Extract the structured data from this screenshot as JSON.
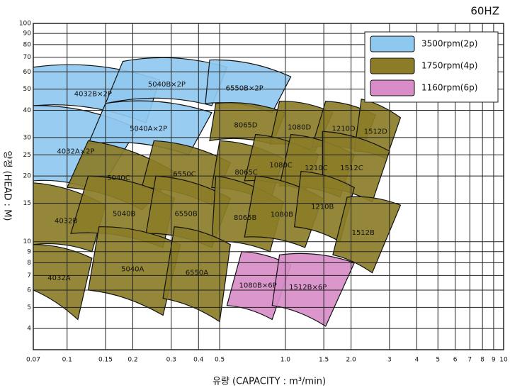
{
  "chart_data": {
    "type": "region",
    "title": "60HZ",
    "xlabel": "유량 (CAPACITY : m³/min)",
    "ylabel": "양정 (HEAD : M)",
    "log_x": true,
    "log_y": true,
    "grid": true,
    "legend": "upper right",
    "xlim": [
      0.07,
      10
    ],
    "ylim": [
      3.2,
      100
    ],
    "xticks": [
      0.07,
      0.1,
      0.15,
      0.2,
      0.3,
      0.4,
      0.5,
      {
        "value": 1,
        "label": "1.0"
      },
      1.5,
      {
        "value": 2,
        "label": "2.0"
      },
      3,
      4,
      5,
      6,
      7,
      8,
      9,
      10
    ],
    "yticks": [
      4,
      5,
      6,
      7,
      8,
      9,
      10,
      15,
      20,
      25,
      30,
      40,
      50,
      60,
      70,
      80,
      90,
      100
    ],
    "series": [
      {
        "name": "3500rpm(2p)",
        "color": "#8fc8ef",
        "regions": [
          {
            "label": "4032B×2P",
            "x": [
              0.07,
              0.265,
              0.23,
              0.07
            ],
            "y": [
              63,
              55,
              35,
              42
            ]
          },
          {
            "label": "5040B×2P",
            "x": [
              0.18,
              0.54,
              0.46,
              0.15
            ],
            "y": [
              67,
              63,
              42,
              43
            ]
          },
          {
            "label": "6550B×2P",
            "x": [
              0.45,
              1.06,
              0.87,
              0.43
            ],
            "y": [
              68,
              57,
              39,
              43
            ]
          },
          {
            "label": "4032A×2P",
            "x": [
              0.07,
              0.21,
              0.14,
              0.07
            ],
            "y": [
              42,
              33,
              17,
              19
            ]
          },
          {
            "label": "5040A×2P",
            "x": [
              0.15,
              0.46,
              0.36,
              0.125
            ],
            "y": [
              43,
              39,
              25,
              28
            ]
          }
        ]
      },
      {
        "name": "1750rpm(4p)",
        "color": "#8b7d28",
        "regions": [
          {
            "label": "8065D",
            "x": [
              0.48,
              1.0,
              0.87,
              0.45
            ],
            "y": [
              43,
              39,
              28,
              29
            ]
          },
          {
            "label": "1080D",
            "x": [
              0.94,
              1.65,
              1.37,
              0.85
            ],
            "y": [
              44,
              39,
              26,
              28
            ]
          },
          {
            "label": "1210D",
            "x": [
              1.53,
              2.59,
              2.23,
              1.32
            ],
            "y": [
              44,
              38,
              26,
              27
            ]
          },
          {
            "label": "1512D",
            "x": [
              2.23,
              3.37,
              2.9,
              2.07
            ],
            "y": [
              45,
              37,
              24,
              26
            ]
          },
          {
            "label": "5040C",
            "x": [
              0.125,
              0.32,
              0.22,
              0.1
            ],
            "y": [
              29,
              20.5,
              14,
              17.7
            ]
          },
          {
            "label": "6550C",
            "x": [
              0.25,
              0.56,
              0.46,
              0.22
            ],
            "y": [
              29,
              23,
              14.7,
              17.7
            ]
          },
          {
            "label": "8065C",
            "x": [
              0.5,
              0.98,
              0.85,
              0.46
            ],
            "y": [
              29,
              24,
              15.2,
              17.7
            ]
          },
          {
            "label": "1080C",
            "x": [
              0.73,
              1.42,
              1.23,
              0.65
            ],
            "y": [
              31,
              25,
              17,
              19
            ]
          },
          {
            "label": "1210C",
            "x": [
              1.06,
              2.07,
              1.78,
              0.94
            ],
            "y": [
              31,
              25,
              16,
              18
            ]
          },
          {
            "label": "1512C",
            "x": [
              1.48,
              3.0,
              2.5,
              1.48
            ],
            "y": [
              32,
              26,
              15.2,
              17.7
            ]
          },
          {
            "label": "4032B",
            "x": [
              0.07,
              0.15,
              0.13,
              0.07
            ],
            "y": [
              18.6,
              14.7,
              9.0,
              9.7
            ]
          },
          {
            "label": "5040B",
            "x": [
              0.125,
              0.31,
              0.275,
              0.104
            ],
            "y": [
              20,
              15.8,
              9.4,
              10.9
            ]
          },
          {
            "label": "6550B",
            "x": [
              0.255,
              0.56,
              0.46,
              0.23
            ],
            "y": [
              20,
              15.8,
              9.4,
              10.9
            ]
          },
          {
            "label": "8065B",
            "x": [
              0.48,
              0.98,
              0.85,
              0.46
            ],
            "y": [
              20,
              15.2,
              9.0,
              10
            ]
          },
          {
            "label": "1080B",
            "x": [
              0.73,
              1.48,
              1.23,
              0.65
            ],
            "y": [
              20,
              15.8,
              9.4,
              10.5
            ]
          },
          {
            "label": "1210B",
            "x": [
              1.18,
              2.07,
              1.78,
              1.1
            ],
            "y": [
              21,
              17.7,
              10,
              11.7
            ]
          },
          {
            "label": "1512B",
            "x": [
              1.92,
              3.37,
              2.5,
              1.65
            ],
            "y": [
              16,
              14.7,
              7.2,
              8.7
            ]
          },
          {
            "label": "4032A",
            "x": [
              0.07,
              0.13,
              0.112,
              0.07
            ],
            "y": [
              9.7,
              8.4,
              4.4,
              6.0
            ]
          },
          {
            "label": "5040A",
            "x": [
              0.14,
              0.33,
              0.275,
              0.125
            ],
            "y": [
              11.7,
              9.7,
              4.6,
              6.0
            ]
          },
          {
            "label": "6550A",
            "x": [
              0.31,
              0.56,
              0.5,
              0.275
            ],
            "y": [
              11.7,
              9.7,
              4.3,
              5.5
            ]
          }
        ]
      },
      {
        "name": "1160rpm(6p)",
        "color": "#d88dc8",
        "regions": [
          {
            "label": "1080B×6P",
            "x": [
              0.63,
              1.06,
              0.87,
              0.54
            ],
            "y": [
              9.0,
              7.8,
              4.4,
              5.1
            ]
          },
          {
            "label": "1512B×6P",
            "x": [
              0.94,
              2.07,
              1.53,
              0.87
            ],
            "y": [
              8.7,
              8.0,
              4.1,
              5.1
            ]
          }
        ]
      }
    ]
  }
}
